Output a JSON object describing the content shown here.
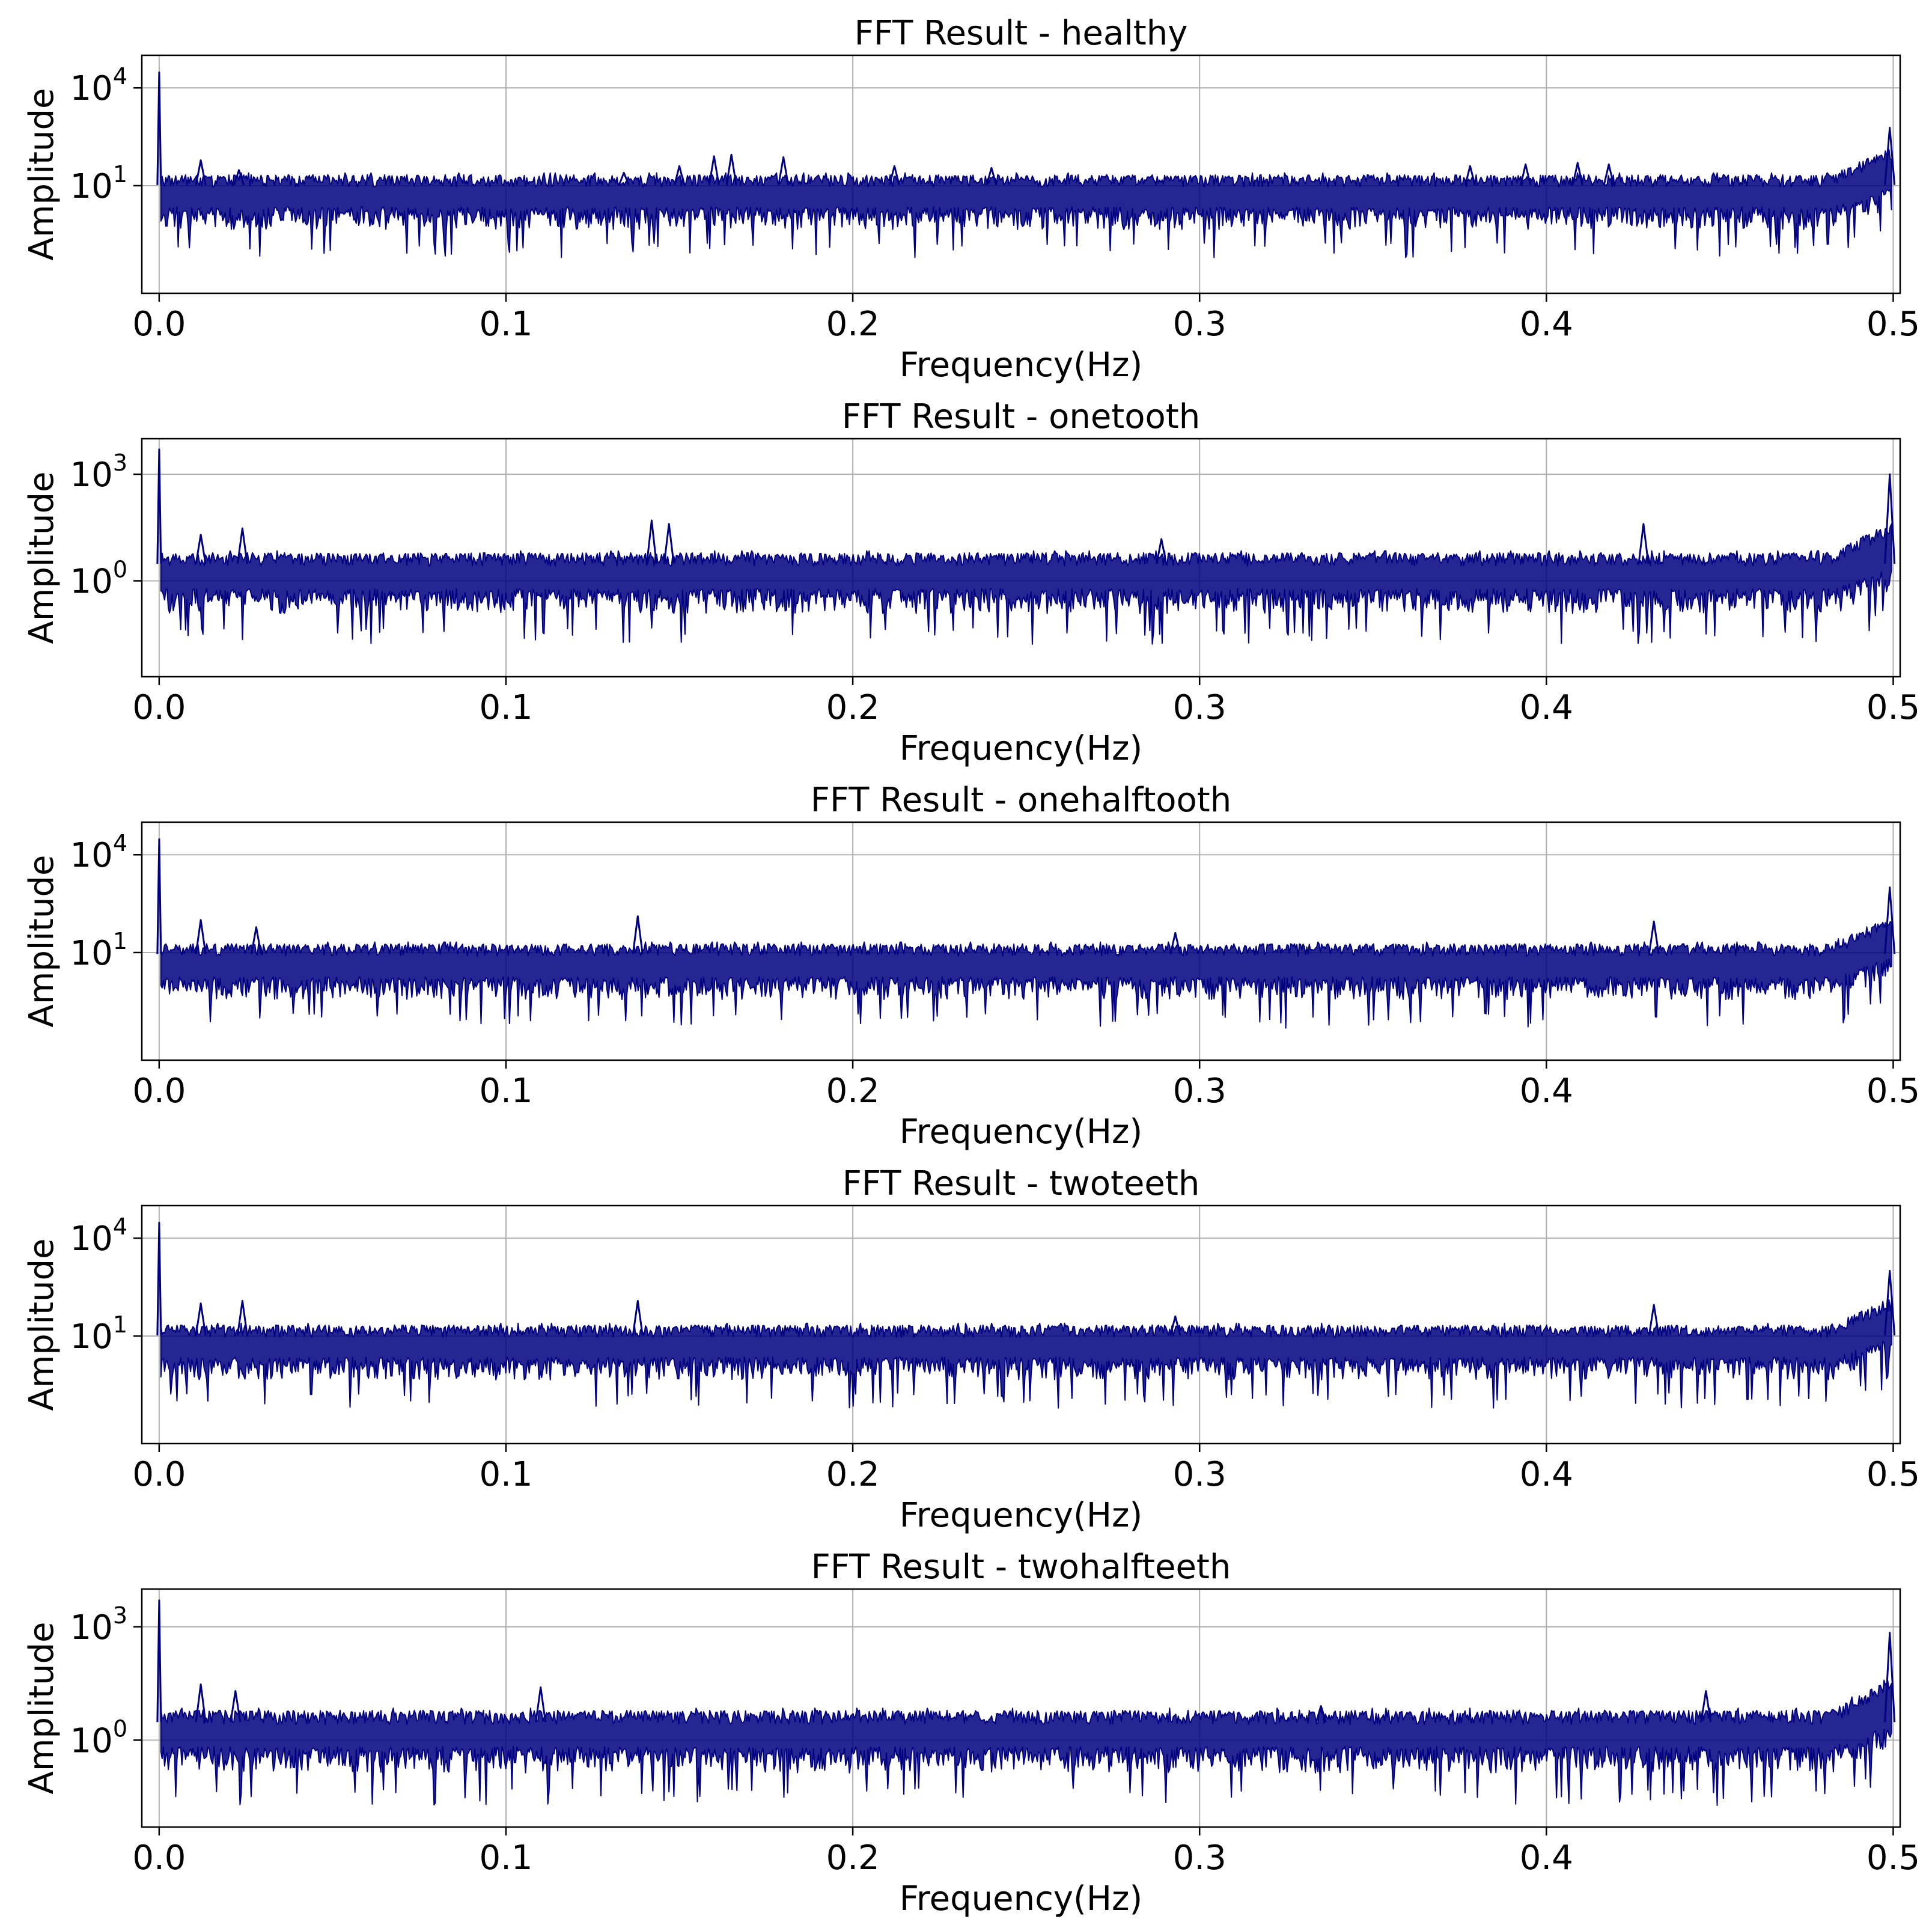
{
  "chart_data": [
    {
      "type": "line",
      "title": "FFT Result - healthy",
      "xlabel": "Frequency(Hz)",
      "ylabel": "Amplitude",
      "xscale": "linear",
      "yscale": "log",
      "xlim": [
        -0.005,
        0.502
      ],
      "ylim": [
        0.005,
        100000
      ],
      "xticks": [
        0.0,
        0.1,
        0.2,
        0.3,
        0.4,
        0.5
      ],
      "xtick_labels": [
        "0.0",
        "0.1",
        "0.2",
        "0.3",
        "0.4",
        "0.5"
      ],
      "yticks": [
        {
          "value": 10000,
          "base": "10",
          "exp": "4"
        },
        {
          "value": 10,
          "base": "10",
          "exp": "1"
        }
      ],
      "grid": true,
      "color": "#000080",
      "baseline_level": 7,
      "noise_floor": 1.5,
      "series": [
        {
          "name": "healthy",
          "peaks": [
            {
              "x": 0.0,
              "y": 30000
            },
            {
              "x": 0.012,
              "y": 60
            },
            {
              "x": 0.023,
              "y": 30
            },
            {
              "x": 0.134,
              "y": 25
            },
            {
              "x": 0.15,
              "y": 40
            },
            {
              "x": 0.16,
              "y": 80
            },
            {
              "x": 0.165,
              "y": 90
            },
            {
              "x": 0.18,
              "y": 75
            },
            {
              "x": 0.212,
              "y": 40
            },
            {
              "x": 0.24,
              "y": 35
            },
            {
              "x": 0.378,
              "y": 40
            },
            {
              "x": 0.394,
              "y": 45
            },
            {
              "x": 0.409,
              "y": 50
            },
            {
              "x": 0.418,
              "y": 45
            },
            {
              "x": 0.499,
              "y": 600
            }
          ]
        }
      ]
    },
    {
      "type": "line",
      "title": "FFT Result - onetooth",
      "xlabel": "Frequency(Hz)",
      "ylabel": "Amplitude",
      "xscale": "linear",
      "yscale": "log",
      "xlim": [
        -0.005,
        0.502
      ],
      "ylim": [
        0.002,
        10000
      ],
      "xticks": [
        0.0,
        0.1,
        0.2,
        0.3,
        0.4,
        0.5
      ],
      "xtick_labels": [
        "0.0",
        "0.1",
        "0.2",
        "0.3",
        "0.4",
        "0.5"
      ],
      "yticks": [
        {
          "value": 1000,
          "base": "10",
          "exp": "3"
        },
        {
          "value": 1,
          "base": "10",
          "exp": "0"
        }
      ],
      "grid": true,
      "color": "#000080",
      "baseline_level": 2,
      "noise_floor": 0.4,
      "series": [
        {
          "name": "onetooth",
          "peaks": [
            {
              "x": 0.0,
              "y": 5000
            },
            {
              "x": 0.012,
              "y": 20
            },
            {
              "x": 0.024,
              "y": 30
            },
            {
              "x": 0.142,
              "y": 50
            },
            {
              "x": 0.147,
              "y": 40
            },
            {
              "x": 0.289,
              "y": 15
            },
            {
              "x": 0.428,
              "y": 40
            },
            {
              "x": 0.499,
              "y": 1000
            }
          ]
        }
      ]
    },
    {
      "type": "line",
      "title": "FFT Result - onehalftooth",
      "xlabel": "Frequency(Hz)",
      "ylabel": "Amplitude",
      "xscale": "linear",
      "yscale": "log",
      "xlim": [
        -0.005,
        0.502
      ],
      "ylim": [
        0.005,
        100000
      ],
      "xticks": [
        0.0,
        0.1,
        0.2,
        0.3,
        0.4,
        0.5
      ],
      "xtick_labels": [
        "0.0",
        "0.1",
        "0.2",
        "0.3",
        "0.4",
        "0.5"
      ],
      "yticks": [
        {
          "value": 10000,
          "base": "10",
          "exp": "4"
        },
        {
          "value": 10,
          "base": "10",
          "exp": "1"
        }
      ],
      "grid": true,
      "color": "#000080",
      "baseline_level": 6,
      "noise_floor": 1.2,
      "series": [
        {
          "name": "onehalftooth",
          "peaks": [
            {
              "x": 0.0,
              "y": 30000
            },
            {
              "x": 0.012,
              "y": 100
            },
            {
              "x": 0.028,
              "y": 60
            },
            {
              "x": 0.138,
              "y": 130
            },
            {
              "x": 0.293,
              "y": 40
            },
            {
              "x": 0.431,
              "y": 90
            },
            {
              "x": 0.499,
              "y": 1000
            }
          ]
        }
      ]
    },
    {
      "type": "line",
      "title": "FFT Result - twoteeth",
      "xlabel": "Frequency(Hz)",
      "ylabel": "Amplitude",
      "xscale": "linear",
      "yscale": "log",
      "xlim": [
        -0.005,
        0.502
      ],
      "ylim": [
        0.005,
        100000
      ],
      "xticks": [
        0.0,
        0.1,
        0.2,
        0.3,
        0.4,
        0.5
      ],
      "xtick_labels": [
        "0.0",
        "0.1",
        "0.2",
        "0.3",
        "0.4",
        "0.5"
      ],
      "yticks": [
        {
          "value": 10000,
          "base": "10",
          "exp": "4"
        },
        {
          "value": 10,
          "base": "10",
          "exp": "1"
        }
      ],
      "grid": true,
      "color": "#000080",
      "baseline_level": 7,
      "noise_floor": 1.5,
      "series": [
        {
          "name": "twoteeth",
          "peaks": [
            {
              "x": 0.0,
              "y": 30000
            },
            {
              "x": 0.012,
              "y": 100
            },
            {
              "x": 0.024,
              "y": 120
            },
            {
              "x": 0.138,
              "y": 120
            },
            {
              "x": 0.293,
              "y": 40
            },
            {
              "x": 0.431,
              "y": 90
            },
            {
              "x": 0.499,
              "y": 1000
            }
          ]
        }
      ]
    },
    {
      "type": "line",
      "title": "FFT Result - twohalfteeth",
      "xlabel": "Frequency(Hz)",
      "ylabel": "Amplitude",
      "xscale": "linear",
      "yscale": "log",
      "xlim": [
        -0.005,
        0.502
      ],
      "ylim": [
        0.005,
        10000
      ],
      "xticks": [
        0.0,
        0.1,
        0.2,
        0.3,
        0.4,
        0.5
      ],
      "xtick_labels": [
        "0.0",
        "0.1",
        "0.2",
        "0.3",
        "0.4",
        "0.5"
      ],
      "yticks": [
        {
          "value": 1000,
          "base": "10",
          "exp": "3"
        },
        {
          "value": 1,
          "base": "10",
          "exp": "0"
        }
      ],
      "grid": true,
      "color": "#000080",
      "baseline_level": 2,
      "noise_floor": 0.45,
      "series": [
        {
          "name": "twohalfteeth",
          "peaks": [
            {
              "x": 0.0,
              "y": 5000
            },
            {
              "x": 0.012,
              "y": 30
            },
            {
              "x": 0.022,
              "y": 20
            },
            {
              "x": 0.11,
              "y": 25
            },
            {
              "x": 0.335,
              "y": 8
            },
            {
              "x": 0.446,
              "y": 20
            },
            {
              "x": 0.499,
              "y": 700
            }
          ]
        }
      ]
    }
  ]
}
